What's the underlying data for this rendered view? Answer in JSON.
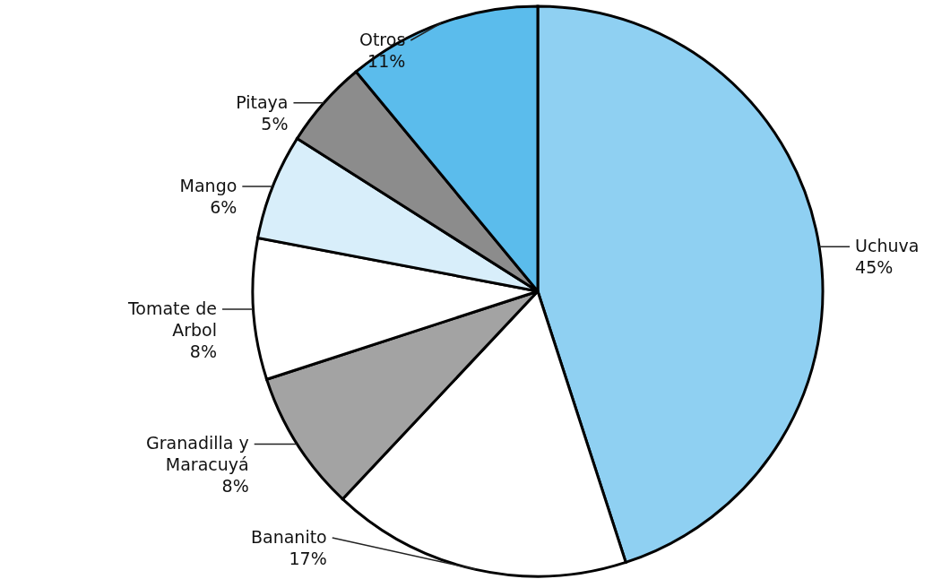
{
  "chart_data": {
    "type": "pie",
    "categories": [
      "Uchuva",
      "Bananito",
      "Granadilla y Maracuyá",
      "Tomate de Arbol",
      "Mango",
      "Pitaya",
      "Otros"
    ],
    "values": [
      45,
      17,
      8,
      8,
      6,
      5,
      11
    ],
    "value_labels": [
      "45%",
      "17%",
      "8%",
      "8%",
      "6%",
      "5%",
      "11%"
    ],
    "colors": [
      "#8fd0f2",
      "#ffffff",
      "#a3a3a3",
      "#ffffff",
      "#d8eefa",
      "#8c8c8c",
      "#5bbcec"
    ]
  }
}
